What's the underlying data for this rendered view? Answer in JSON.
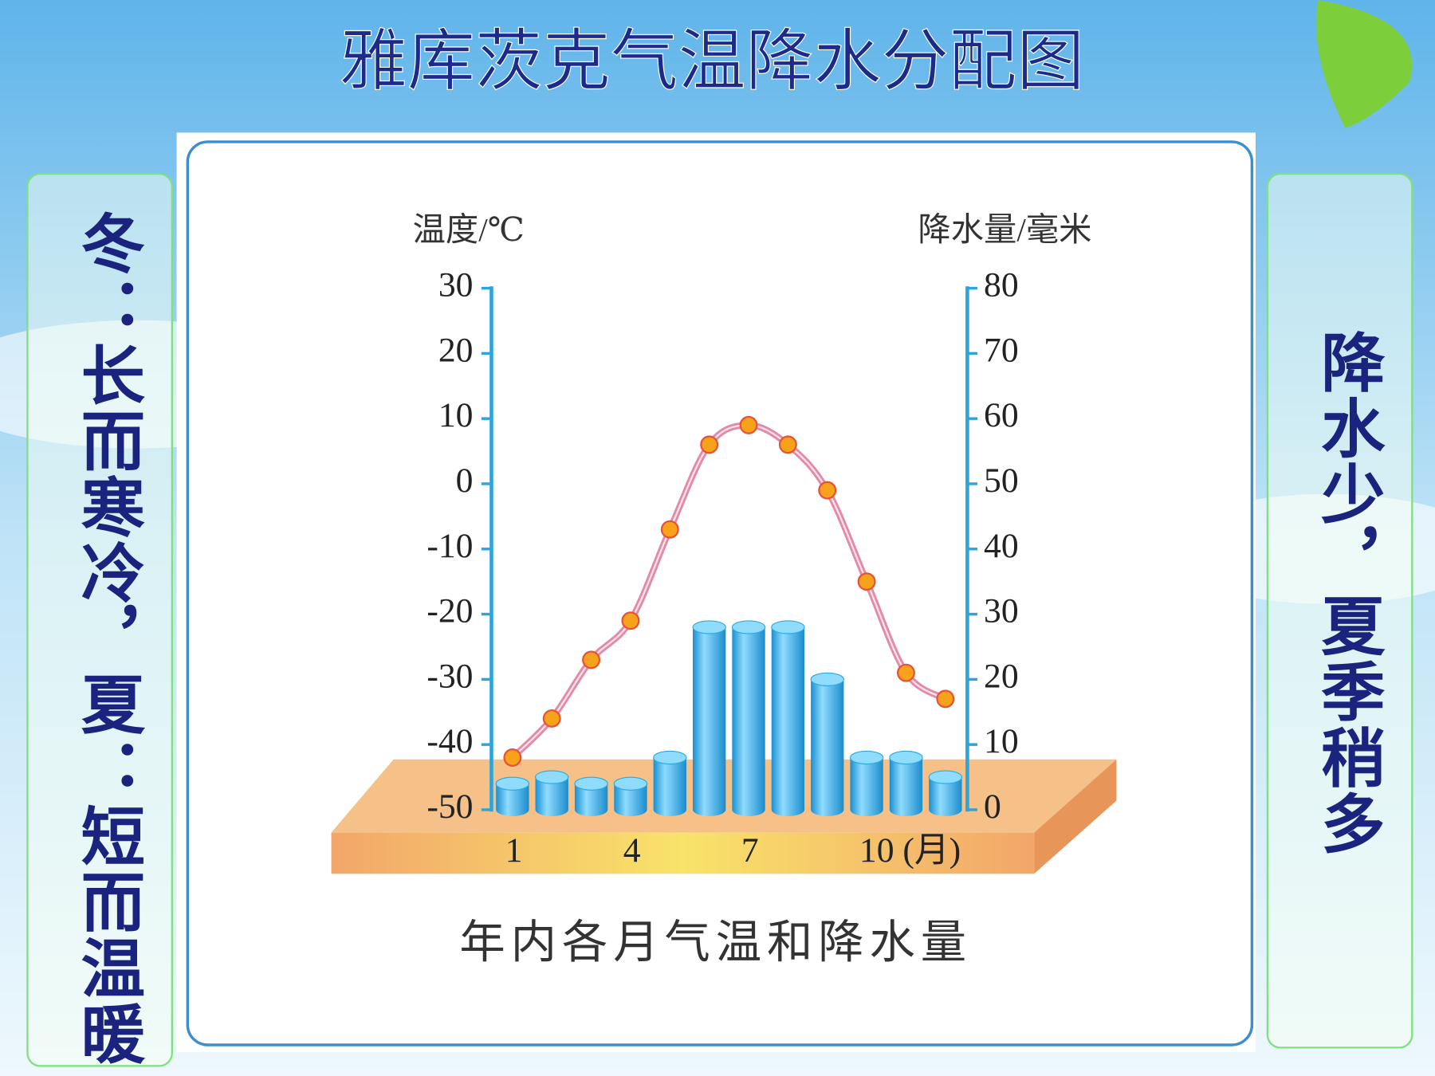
{
  "title": "雅库茨克气温降水分配图",
  "left_note": "冬：长而寒冷，夏：短而温暖",
  "right_note": "降水少，夏季稍多",
  "chart_data": {
    "type": "combo",
    "caption": "年内各月气温和降水量",
    "y_label": "温度/℃",
    "y2_label": "降水量/毫米",
    "categories": [
      "1",
      null,
      null,
      "4",
      null,
      null,
      "7",
      null,
      null,
      "10 (月)",
      null,
      null
    ],
    "series": [
      {
        "type": "bar",
        "axis": "y2",
        "color": "#29a9e1",
        "values": [
          4,
          5,
          4,
          4,
          8,
          28,
          28,
          28,
          20,
          8,
          8,
          5
        ]
      },
      {
        "type": "line",
        "color": "#e38aa8",
        "marker_color": "#f7a21b",
        "values": [
          -42,
          -36,
          -27,
          -21,
          -7,
          6,
          9,
          6,
          -1,
          -15,
          -29,
          -33
        ]
      }
    ],
    "ylim": [
      -50,
      30
    ],
    "yticks": [
      -50,
      -40,
      -30,
      -20,
      -10,
      0,
      10,
      20,
      30
    ],
    "y2lim": [
      0,
      80
    ],
    "y2ticks": [
      0,
      10,
      20,
      30,
      40,
      50,
      60,
      70,
      80
    ]
  }
}
